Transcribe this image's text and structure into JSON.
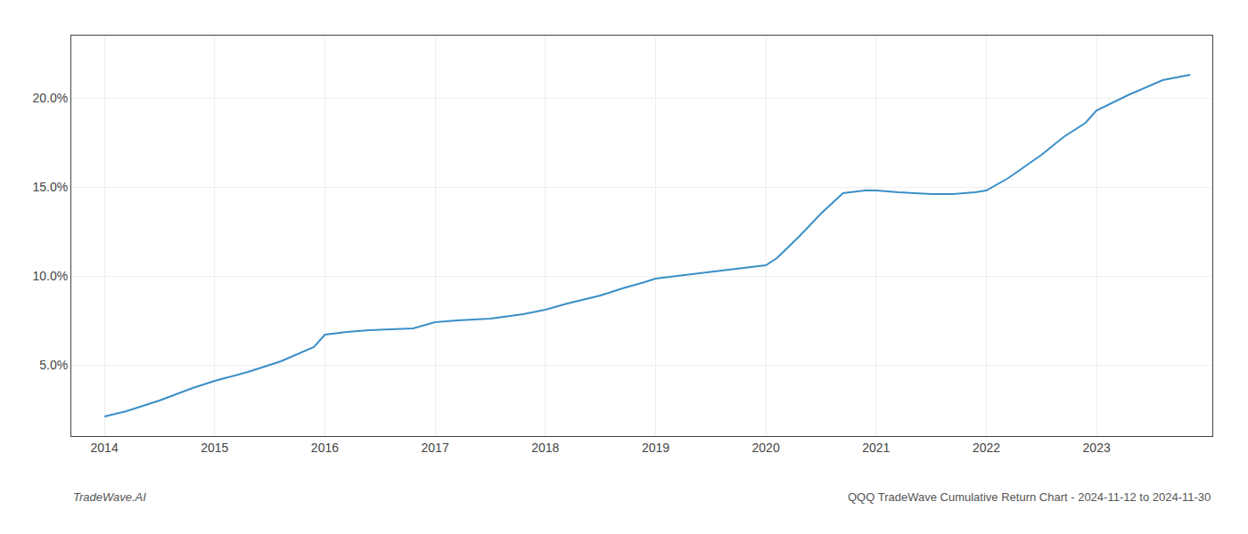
{
  "chart_data": {
    "type": "line",
    "x": [
      2014.0,
      2014.2,
      2014.5,
      2014.8,
      2015.0,
      2015.3,
      2015.6,
      2015.9,
      2016.0,
      2016.2,
      2016.4,
      2016.6,
      2016.8,
      2017.0,
      2017.2,
      2017.5,
      2017.8,
      2018.0,
      2018.2,
      2018.5,
      2018.7,
      2018.9,
      2019.0,
      2019.2,
      2019.4,
      2019.6,
      2019.8,
      2019.9,
      2020.0,
      2020.1,
      2020.3,
      2020.5,
      2020.7,
      2020.9,
      2021.0,
      2021.2,
      2021.5,
      2021.7,
      2021.9,
      2022.0,
      2022.2,
      2022.5,
      2022.7,
      2022.9,
      2023.0,
      2023.3,
      2023.6,
      2023.85
    ],
    "values": [
      2.1,
      2.4,
      3.0,
      3.7,
      4.1,
      4.6,
      5.2,
      6.0,
      6.7,
      6.85,
      6.95,
      7.0,
      7.05,
      7.4,
      7.5,
      7.6,
      7.85,
      8.1,
      8.45,
      8.9,
      9.3,
      9.65,
      9.85,
      10.0,
      10.15,
      10.3,
      10.45,
      10.55,
      10.6,
      11.0,
      12.2,
      13.5,
      14.65,
      14.8,
      14.8,
      14.7,
      14.6,
      14.6,
      14.7,
      14.8,
      15.5,
      16.8,
      17.8,
      18.6,
      19.3,
      20.2,
      21.0,
      21.3
    ],
    "color": "#3a8fc7",
    "xlim": [
      2013.7,
      2024.05
    ],
    "xticks": [
      2014,
      2015,
      2016,
      2017,
      2018,
      2019,
      2020,
      2021,
      2022,
      2023
    ],
    "ylim": [
      1.0,
      23.5
    ],
    "yticks": [
      {
        "value": 5.0,
        "label": "5.0%"
      },
      {
        "value": 10.0,
        "label": "10.0%"
      },
      {
        "value": 15.0,
        "label": "15.0%"
      },
      {
        "value": 20.0,
        "label": "20.0%"
      }
    ],
    "grid": true,
    "annotations": [
      "TradeWave.AI",
      "QQQ TradeWave Cumulative Return Chart - 2024-11-12 to 2024-11-30"
    ]
  }
}
